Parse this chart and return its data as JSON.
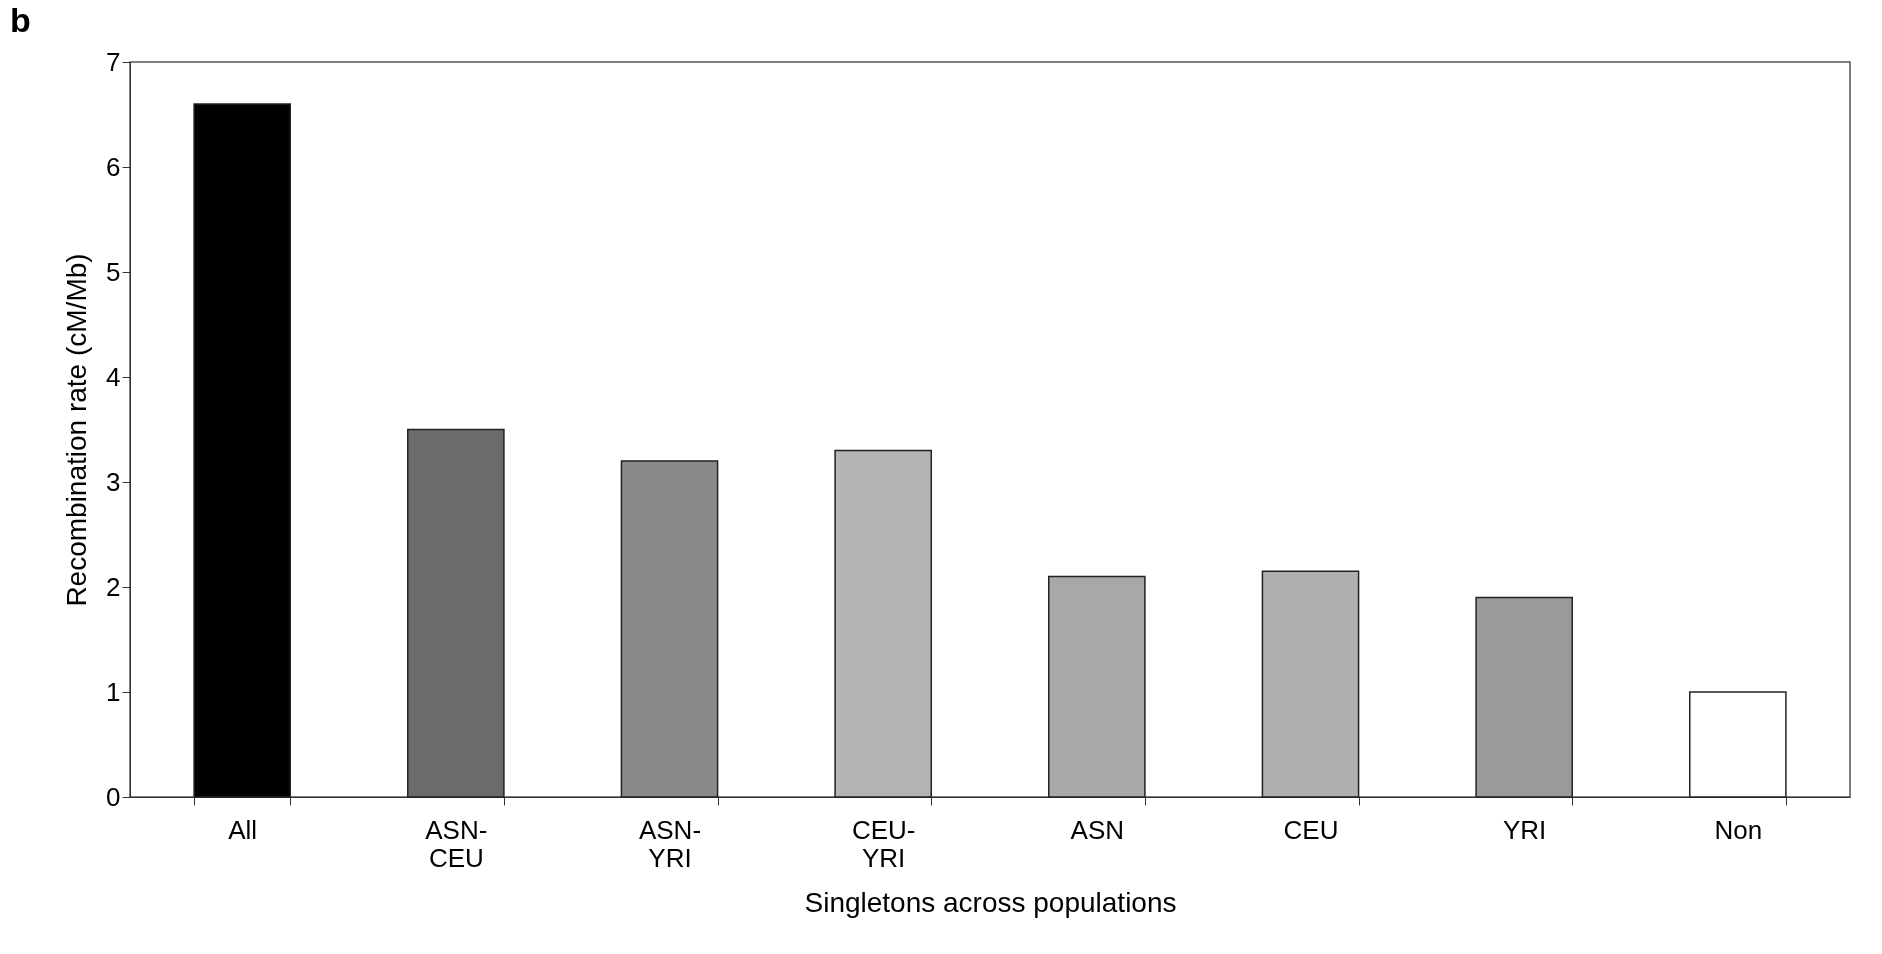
{
  "chart_data": {
    "type": "bar",
    "title": "b",
    "xlabel": "Singletons across populations",
    "ylabel": "Recombination rate (cM/Mb)",
    "categories": [
      "All",
      "ASN-CEU",
      "ASN-YRI",
      "CEU-YRI",
      "ASN",
      "CEU",
      "YRI",
      "Non"
    ],
    "values": [
      6.6,
      3.5,
      3.2,
      3.3,
      2.1,
      2.15,
      1.9,
      1.0
    ],
    "colors": [
      "#000000",
      "#6b6b6b",
      "#8a8a8a",
      "#b4b4b4",
      "#a8a8a8",
      "#b0b0b0",
      "#9a9a9a",
      "#ffffff"
    ],
    "ylim": [
      0,
      7
    ],
    "yticks": [
      0,
      1,
      2,
      3,
      4,
      5,
      6,
      7
    ],
    "grid": false,
    "legend": false
  }
}
